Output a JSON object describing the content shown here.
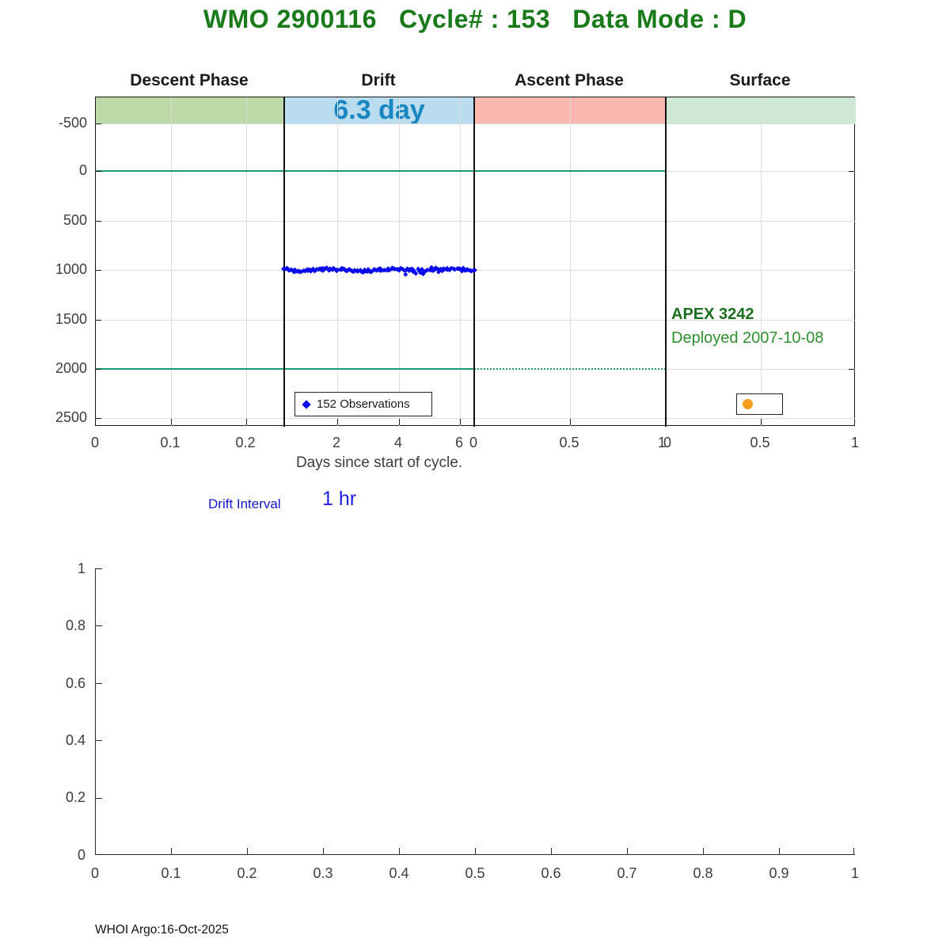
{
  "title": "WMO 2900116   Cycle# : 153   Data Mode : D",
  "top_chart": {
    "panel_headers": {
      "descent": "Descent Phase",
      "drift": "Drift",
      "ascent": "Ascent Phase",
      "surface": "Surface"
    },
    "drift_band_label": "6.3 day",
    "legend_label": "152 Observations",
    "float_label": "APEX 3242",
    "deployed_label": "Deployed 2007-10-08",
    "xlabel": "Days since start of cycle.",
    "y_ticks": [
      "-500",
      "0",
      "500",
      "1000",
      "1500",
      "2000",
      "2500"
    ],
    "x_ticks_descent": [
      "0",
      "0.1",
      "0.2"
    ],
    "x_ticks_drift": [
      "2",
      "4",
      "6"
    ],
    "x_ticks_ascent": [
      "0",
      "0.5",
      "1"
    ],
    "x_ticks_surface": [
      "0",
      "0.5",
      "1"
    ]
  },
  "drift_interval": {
    "label": "Drift Interval",
    "value": "1 hr"
  },
  "bottom_chart": {
    "y_ticks": [
      "1",
      "0.8",
      "0.6",
      "0.4",
      "0.2",
      "0"
    ],
    "x_ticks": [
      "0",
      "0.1",
      "0.2",
      "0.3",
      "0.4",
      "0.5",
      "0.6",
      "0.7",
      "0.8",
      "0.9",
      "1"
    ]
  },
  "footer": "WHOI Argo:16-Oct-2025",
  "colors": {
    "title_green": "#187a18",
    "band_descent": "#bdd9a8",
    "band_drift": "#b9ddef",
    "band_ascent": "#f9b7af",
    "band_surface": "#cfe8d6",
    "drift_label_blue": "#1886c0",
    "reference_teal": "#169c7c",
    "observation_blue": "#0a0af0",
    "surface_orange": "#f89d1e",
    "apex_green": "#1b6e1b",
    "deployed_green": "#2f8f2f",
    "interval_blue": "#1515cf"
  },
  "chart_data": {
    "type": "scatter",
    "title": "WMO 2900116   Cycle# : 153   Data Mode : D",
    "subplots": [
      {
        "name": "cycle_phase_timeline",
        "xlabel": "Days since start of cycle.",
        "ylabel": "",
        "y_axis": {
          "ticks": [
            -500,
            0,
            500,
            1000,
            1500,
            2000,
            2500
          ],
          "inverted": true,
          "units": "depth"
        },
        "grid": true,
        "panels": [
          {
            "phase": "Descent Phase",
            "x_ticks": [
              0,
              0.1,
              0.2
            ],
            "x_range": [
              0,
              0.25
            ],
            "band_color": "#bdd9a8"
          },
          {
            "phase": "Drift",
            "x_ticks": [
              2,
              4,
              6
            ],
            "x_range": [
              0.28,
              6.15
            ],
            "band_color": "#b9ddef",
            "duration_days": 6.3,
            "band_label": "6.3 day"
          },
          {
            "phase": "Ascent Phase",
            "x_ticks": [
              0,
              0.5,
              1
            ],
            "x_range": [
              0,
              1
            ],
            "band_color": "#f9b7af"
          },
          {
            "phase": "Surface",
            "x_ticks": [
              0,
              0.5,
              1
            ],
            "x_range": [
              0,
              1
            ],
            "band_color": "#cfe8d6"
          }
        ],
        "series": [
          {
            "name": "152 Observations",
            "panel": "Drift",
            "marker": "diamond",
            "color": "#0a0af0",
            "count": 152,
            "depth_center": 1000,
            "depth_jitter": 30,
            "x_span_days": [
              0,
              6.3
            ],
            "legend_position": "bottom-left-of-drift-panel"
          },
          {
            "name": "surface-marker",
            "panel": "Surface",
            "marker": "circle",
            "color": "#f89d1e",
            "depth_approx": 2350,
            "count": 1
          }
        ],
        "reference_lines": [
          {
            "depth": 0,
            "style": "solid",
            "color": "#169c7c",
            "spans": [
              "Descent Phase",
              "Drift",
              "Ascent Phase"
            ]
          },
          {
            "depth": 2000,
            "style": "solid",
            "color": "#169c7c",
            "spans": [
              "Descent Phase",
              "Drift"
            ]
          },
          {
            "depth": 2000,
            "style": "dotted",
            "color": "#169c7c",
            "spans": [
              "Ascent Phase"
            ]
          }
        ],
        "annotations": [
          "APEX 3242",
          "Deployed 2007-10-08",
          "6.3 day",
          "Drift Interval 1 hr"
        ]
      },
      {
        "name": "empty_axes",
        "x_ticks": [
          0,
          0.1,
          0.2,
          0.3,
          0.4,
          0.5,
          0.6,
          0.7,
          0.8,
          0.9,
          1
        ],
        "y_ticks": [
          0,
          0.2,
          0.4,
          0.6,
          0.8,
          1
        ],
        "xlim": [
          0,
          1
        ],
        "ylim": [
          0,
          1
        ],
        "series": []
      }
    ]
  }
}
